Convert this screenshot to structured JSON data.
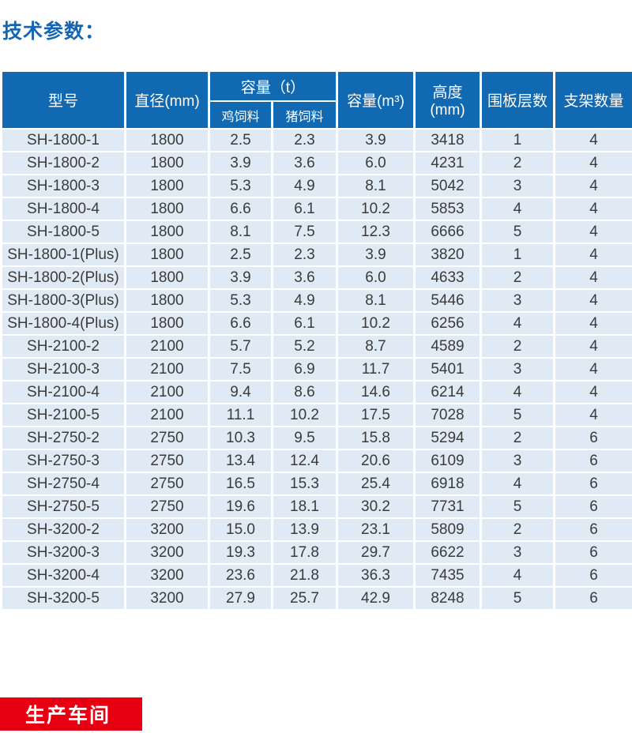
{
  "page": {
    "title": "技术参数："
  },
  "table": {
    "header": {
      "model": "型号",
      "diameter": "直径(mm)",
      "capacity_t_group": "容量（t）",
      "chicken_feed": "鸡饲料",
      "pig_feed": "猪饲料",
      "capacity_m3": "容量(m³)",
      "height": "高度(mm)",
      "panel_layers": "围板层数",
      "bracket_count": "支架数量"
    },
    "column_keys": [
      "model",
      "diameter",
      "chicken-feed",
      "pig-feed",
      "capacity-m3",
      "height",
      "panel-layers",
      "bracket-count"
    ],
    "rows": [
      [
        "SH-1800-1",
        "1800",
        "2.5",
        "2.3",
        "3.9",
        "3418",
        "1",
        "4"
      ],
      [
        "SH-1800-2",
        "1800",
        "3.9",
        "3.6",
        "6.0",
        "4231",
        "2",
        "4"
      ],
      [
        "SH-1800-3",
        "1800",
        "5.3",
        "4.9",
        "8.1",
        "5042",
        "3",
        "4"
      ],
      [
        "SH-1800-4",
        "1800",
        "6.6",
        "6.1",
        "10.2",
        "5853",
        "4",
        "4"
      ],
      [
        "SH-1800-5",
        "1800",
        "8.1",
        "7.5",
        "12.3",
        "6666",
        "5",
        "4"
      ],
      [
        "SH-1800-1(Plus)",
        "1800",
        "2.5",
        "2.3",
        "3.9",
        "3820",
        "1",
        "4"
      ],
      [
        "SH-1800-2(Plus)",
        "1800",
        "3.9",
        "3.6",
        "6.0",
        "4633",
        "2",
        "4"
      ],
      [
        "SH-1800-3(Plus)",
        "1800",
        "5.3",
        "4.9",
        "8.1",
        "5446",
        "3",
        "4"
      ],
      [
        "SH-1800-4(Plus)",
        "1800",
        "6.6",
        "6.1",
        "10.2",
        "6256",
        "4",
        "4"
      ],
      [
        "SH-2100-2",
        "2100",
        "5.7",
        "5.2",
        "8.7",
        "4589",
        "2",
        "4"
      ],
      [
        "SH-2100-3",
        "2100",
        "7.5",
        "6.9",
        "11.7",
        "5401",
        "3",
        "4"
      ],
      [
        "SH-2100-4",
        "2100",
        "9.4",
        "8.6",
        "14.6",
        "6214",
        "4",
        "4"
      ],
      [
        "SH-2100-5",
        "2100",
        "11.1",
        "10.2",
        "17.5",
        "7028",
        "5",
        "4"
      ],
      [
        "SH-2750-2",
        "2750",
        "10.3",
        "9.5",
        "15.8",
        "5294",
        "2",
        "6"
      ],
      [
        "SH-2750-3",
        "2750",
        "13.4",
        "12.4",
        "20.6",
        "6109",
        "3",
        "6"
      ],
      [
        "SH-2750-4",
        "2750",
        "16.5",
        "15.3",
        "25.4",
        "6918",
        "4",
        "6"
      ],
      [
        "SH-2750-5",
        "2750",
        "19.6",
        "18.1",
        "30.2",
        "7731",
        "5",
        "6"
      ],
      [
        "SH-3200-2",
        "3200",
        "15.0",
        "13.9",
        "23.1",
        "5809",
        "2",
        "6"
      ],
      [
        "SH-3200-3",
        "3200",
        "19.3",
        "17.8",
        "29.7",
        "6622",
        "3",
        "6"
      ],
      [
        "SH-3200-4",
        "3200",
        "23.6",
        "21.8",
        "36.3",
        "7435",
        "4",
        "6"
      ],
      [
        "SH-3200-5",
        "3200",
        "27.9",
        "25.7",
        "42.9",
        "8248",
        "5",
        "6"
      ]
    ]
  },
  "footer_banner": {
    "label": "生产车间"
  },
  "colors": {
    "header_blue": "#1169b2",
    "row_blue": "#dfeaf5",
    "title_blue": "#1566b2",
    "accent_red": "#e60012",
    "text_dark": "#3b3b3b"
  }
}
